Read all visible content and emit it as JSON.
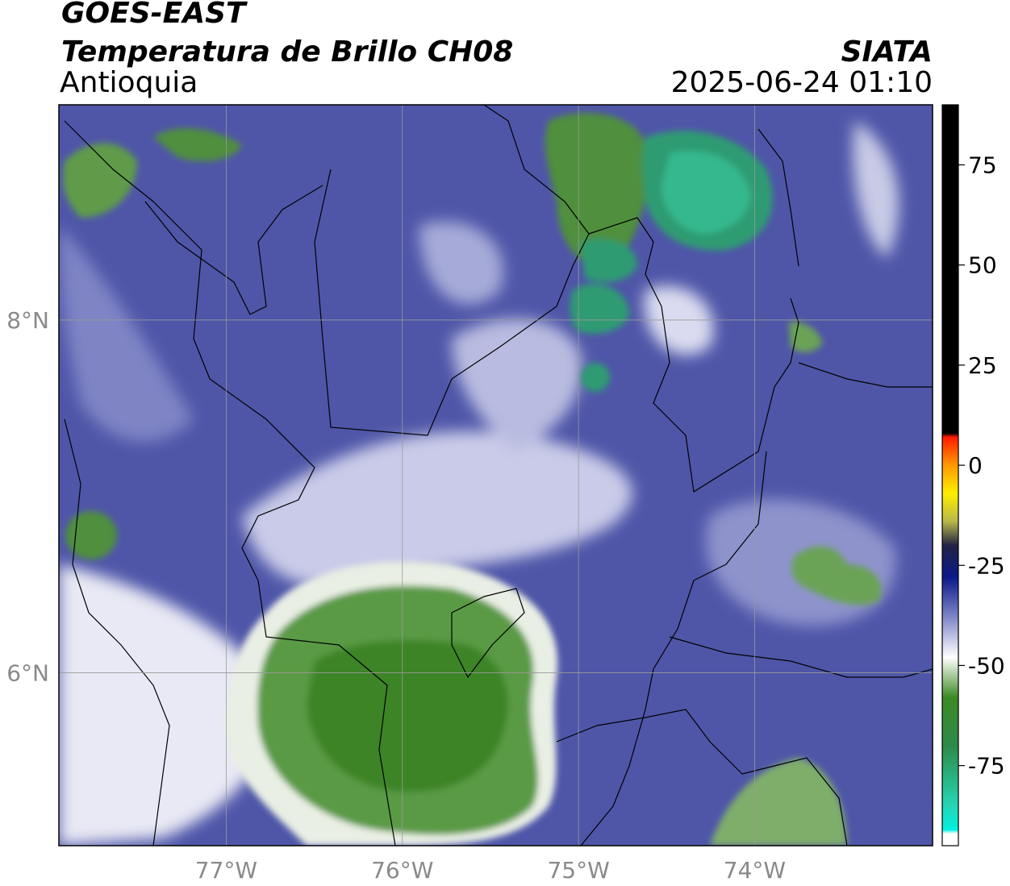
{
  "header": {
    "satellite": "GOES-EAST",
    "product": "Temperatura de Brillo CH08",
    "region": "Antioquia",
    "organization": "SIATA",
    "datetime": "2025-06-24 01:10"
  },
  "map": {
    "lon_range": [
      -77.95,
      -72.99
    ],
    "lat_range": [
      5.02,
      9.22
    ],
    "grid_lon": [
      -77,
      -76,
      -75,
      -74
    ],
    "grid_lat": [
      8,
      6
    ],
    "lon_labels": [
      "77°W",
      "76°W",
      "75°W",
      "74°W"
    ],
    "lat_labels": [
      "8°N",
      "6°N"
    ],
    "colors": {
      "background_blue": "#4f56a8",
      "cloud_green": "#3f8a2f",
      "cold_core": "#2aa57a",
      "white": "#ffffff"
    }
  },
  "colorbar": {
    "range": [
      -95,
      90
    ],
    "ticks": [
      75,
      50,
      25,
      0,
      -25,
      -50,
      -75
    ],
    "tick_labels": [
      "75",
      "50",
      "25",
      "0",
      "-25",
      "-50",
      "-75"
    ],
    "stops": [
      {
        "value": 90,
        "color": "#000000"
      },
      {
        "value": 8,
        "color": "#000000"
      },
      {
        "value": 7,
        "color": "#ff1a00"
      },
      {
        "value": 0,
        "color": "#ff9900"
      },
      {
        "value": -7,
        "color": "#ffee00"
      },
      {
        "value": -14,
        "color": "#b8b84a"
      },
      {
        "value": -20,
        "color": "#222244"
      },
      {
        "value": -28,
        "color": "#0a1a8a"
      },
      {
        "value": -38,
        "color": "#8088c8"
      },
      {
        "value": -48,
        "color": "#ffffff"
      },
      {
        "value": -58,
        "color": "#3c8a24"
      },
      {
        "value": -70,
        "color": "#2e8a4a"
      },
      {
        "value": -85,
        "color": "#25d6b4"
      },
      {
        "value": -91,
        "color": "#00f0e0"
      },
      {
        "value": -92,
        "color": "#ffffff"
      },
      {
        "value": -95,
        "color": "#ffffff"
      }
    ]
  }
}
